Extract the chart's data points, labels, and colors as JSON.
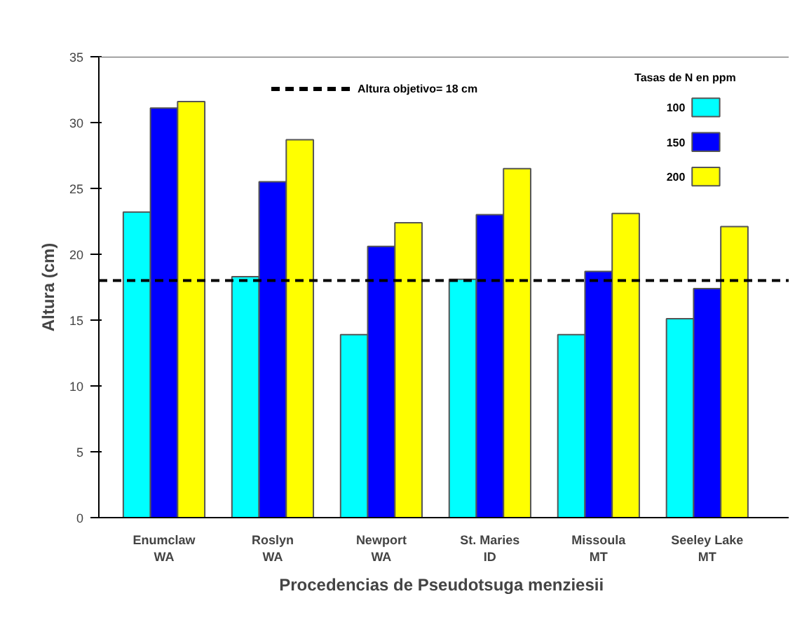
{
  "chart_data": {
    "type": "bar",
    "xlabel": "Procedencias de  Pseudotsuga menziesii",
    "ylabel": "Altura (cm)",
    "legend_title": "Tasas de N en ppm",
    "categories": [
      "Enumclaw\nWA",
      "Roslyn\nWA",
      "Newport\nWA",
      "St. Maries\nID",
      "Missoula\nMT",
      "Seeley Lake\nMT"
    ],
    "series": [
      {
        "name": "100",
        "color": "#00ffff",
        "values": [
          23.2,
          18.3,
          13.9,
          18.1,
          13.9,
          15.1
        ]
      },
      {
        "name": "150",
        "color": "#0000ff",
        "values": [
          31.1,
          25.5,
          20.6,
          23.0,
          18.7,
          17.4
        ]
      },
      {
        "name": "200",
        "color": "#ffff00",
        "values": [
          31.6,
          28.7,
          22.4,
          26.5,
          23.1,
          22.1
        ]
      }
    ],
    "ylim": [
      0,
      35
    ],
    "yticks": [
      0,
      5,
      10,
      15,
      20,
      25,
      30,
      35
    ],
    "ref_lines": [
      {
        "axis": "y",
        "value": 18,
        "color": "#000000",
        "line_style": "dashed"
      }
    ],
    "annotations": [
      "Altura objetivo= 18 cm"
    ],
    "grid": false,
    "legend": "top right"
  }
}
